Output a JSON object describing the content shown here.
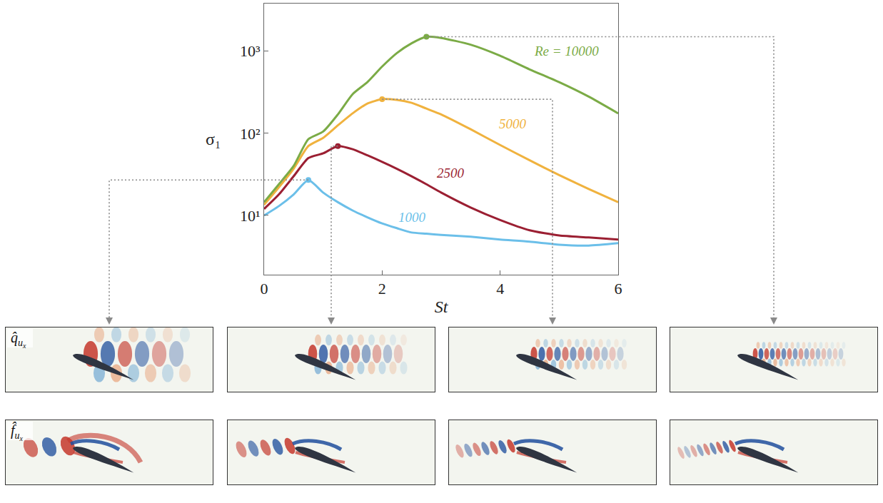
{
  "chart_data": {
    "type": "line",
    "xlabel": "St",
    "ylabel": "σ₁",
    "log": "y",
    "grid": false,
    "xlim": [
      0,
      6
    ],
    "ylim": [
      1.9,
      3800
    ],
    "xticks": [
      0,
      2,
      4,
      6
    ],
    "yticks": [
      {
        "value": 10,
        "label": "10¹"
      },
      {
        "value": 100,
        "label": "10²"
      },
      {
        "value": 1000,
        "label": "10³"
      }
    ],
    "x": [
      0,
      0.25,
      0.5,
      0.75,
      1,
      1.25,
      1.5,
      1.75,
      2,
      2.25,
      2.5,
      2.75,
      3,
      3.5,
      4,
      4.5,
      5,
      5.5,
      6
    ],
    "series": [
      {
        "name": "1000",
        "color": "#6bbfe9",
        "peak": [
          0.75,
          27
        ],
        "values": [
          10,
          13,
          18,
          27,
          19,
          14.5,
          11.5,
          9.5,
          8,
          7,
          6.2,
          6.0,
          5.8,
          5.5,
          5.1,
          4.8,
          4.4,
          4.3,
          4.6
        ]
      },
      {
        "name": "2500",
        "color": "#9b1f32",
        "peak": [
          1.25,
          70
        ],
        "values": [
          12,
          18,
          30,
          50,
          57,
          70,
          64,
          54,
          45,
          37,
          30,
          24,
          19,
          12.5,
          8.8,
          6.6,
          5.7,
          5.4,
          5.1
        ]
      },
      {
        "name": "5000",
        "color": "#f0b23e",
        "peak": [
          2,
          260
        ],
        "values": [
          13.5,
          22,
          37,
          70,
          88,
          125,
          175,
          230,
          260,
          255,
          235,
          200,
          170,
          112,
          72,
          47,
          31,
          21,
          14.5
        ]
      },
      {
        "name": "Re = 10000",
        "color": "#7bab46",
        "peak": [
          2.75,
          1500
        ],
        "values": [
          14.5,
          24,
          40,
          85,
          105,
          170,
          300,
          420,
          650,
          950,
          1250,
          1500,
          1450,
          1200,
          880,
          600,
          420,
          280,
          175
        ]
      }
    ]
  },
  "panels": {
    "rows": [
      {
        "label": {
          "symbol": "q̂",
          "subscript": "u",
          "subsubscript": "x"
        }
      },
      {
        "label": {
          "symbol": "f̂",
          "subscript": "u",
          "subsubscript": "x"
        }
      }
    ]
  }
}
